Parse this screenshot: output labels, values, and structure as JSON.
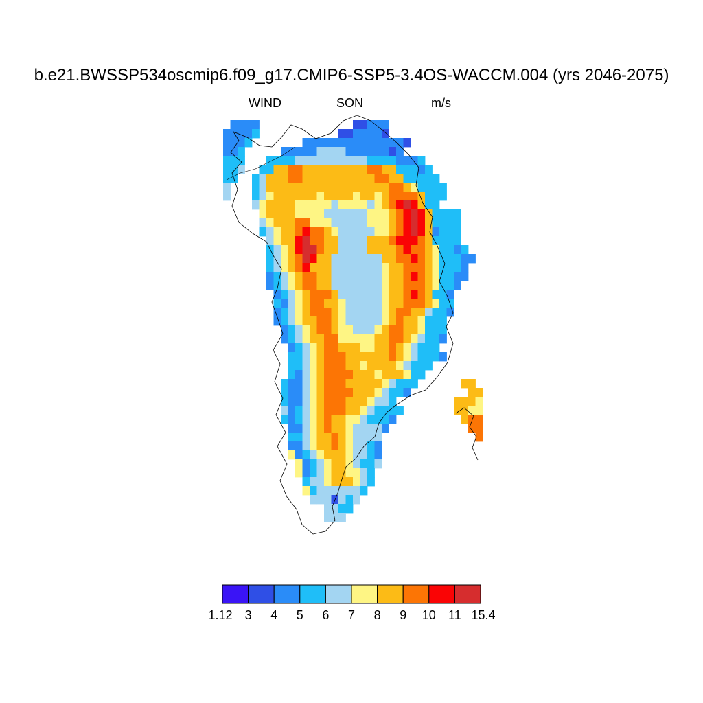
{
  "header": {
    "title": "b.e21.BWSSP534oscmip6.f09_g17.CMIP6-SSP5-3.4OS-WACCM.004 (yrs 2046-2075)",
    "left_label": "WIND",
    "center_label": "SON",
    "right_label": "m/s"
  },
  "chart_data": {
    "type": "heatmap",
    "variable": "WIND",
    "season": "SON",
    "units": "m/s",
    "region": "Greenland",
    "colorbar": {
      "labels": [
        "1.12",
        "3",
        "4",
        "5",
        "6",
        "7",
        "8",
        "9",
        "10",
        "11",
        "15.4"
      ],
      "bounds": [
        1.12,
        3,
        4,
        5,
        6,
        7,
        8,
        9,
        10,
        11,
        15.4
      ],
      "colors": [
        "#3a14f6",
        "#2f4fe6",
        "#2a8cf8",
        "#1fbef8",
        "#a3d5f2",
        "#fef584",
        "#fcbb16",
        "#fc7505",
        "#fa0405",
        "#d62d2e"
      ]
    },
    "field_rows": [
      "....................................",
      ".2222.............11222.............",
      "22223...........1122221.............",
      "2223.......222222222222221..........",
      "223.....22222444422222212...........",
      "333...3333444444444433332223........",
      "334..336677666666666776633323.......",
      "33..34666776666666666776633333......",
      "4...346666666666666666677653333.....",
      "4...345666666566665665677776333.....",
      "....45666655555455554567898633......",
      ".....5666655554444445556789863333...",
      ".....4566677555444445556789863333...",
      ".....3456678776544444556789862333...",
      "......456689776644446667888763333...",
      "......3456899766444466667877653323..",
      "......34567986644444446677876533322.",
      "......3456786664444444566777653332..",
      "......2345677664444444566787653322..",
      "......234567766444444456677765332...",
      ".......2345677764444445667876332....",
      ".......3245677665444445667776533....",
      ".......2345677765444445677664332....",
      ".......234566776544444567665333.....",
      "........23456776554445677665333.....",
      "........23456677555556677654332.....",
      ".........234567766655667654333......",
      ".........3345677766666676543332.....",
      ".........33456777665666654333.......",
      ".........3245677776665666533........",
      "........3224567776666654333......66.",
      "........322456777766654332........66",
      "........3224567776665443........6665",
      "........42345677766543333.......6655",
      "........3234567665543332.........677",
      ".........22456766544442...........77",
      ".........3345667654444.............7",
      ".........2245667654432..............",
      ".........5234566654432..............",
      "..........523456654334..............",
      "..........52345665543...............",
      "...........3445666543...............",
      "...........534444443................",
      "............4441434.................",
      "..............4433..................",
      "..............444...................",
      "....................................",
      "....................................",
      "...................................."
    ]
  }
}
